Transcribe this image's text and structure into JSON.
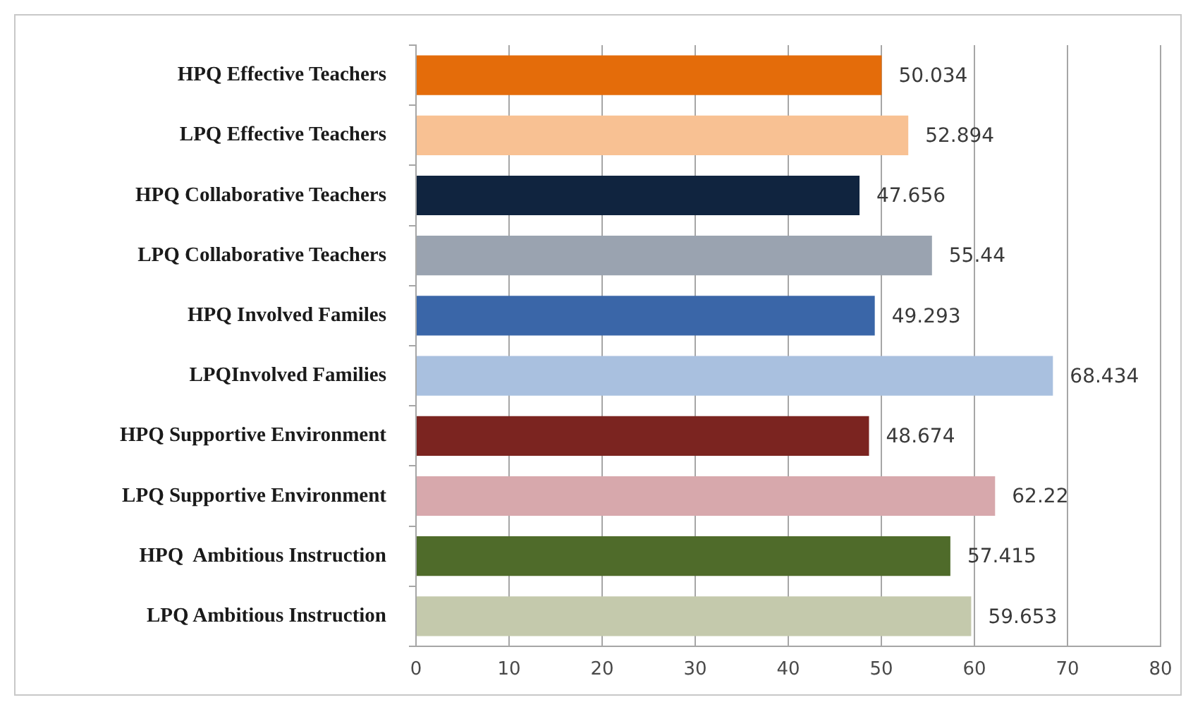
{
  "chart_data": {
    "type": "bar",
    "orientation": "horizontal",
    "categories": [
      "HPQ Effective Teachers",
      "LPQ Effective Teachers",
      "HPQ Collaborative Teachers",
      "LPQ Collaborative Teachers",
      "HPQ Involved Familes",
      "LPQInvolved Families",
      "HPQ Supportive Environment",
      "LPQ Supportive Environment",
      "HPQ  Ambitious Instruction",
      "LPQ Ambitious Instruction"
    ],
    "values": [
      50.034,
      52.894,
      47.656,
      55.44,
      49.293,
      68.434,
      48.674,
      62.22,
      57.415,
      59.653
    ],
    "colors": [
      "#e46c0a",
      "#f8c193",
      "#10243f",
      "#9aa3b0",
      "#3a66a8",
      "#a9c0df",
      "#7b2420",
      "#d7a8ac",
      "#4f6b2a",
      "#c4c9ac"
    ],
    "xlim": [
      0,
      80
    ],
    "xticks": [
      0,
      10,
      20,
      30,
      40,
      50,
      60,
      70,
      80
    ],
    "grid": "x",
    "data_labels": true
  }
}
